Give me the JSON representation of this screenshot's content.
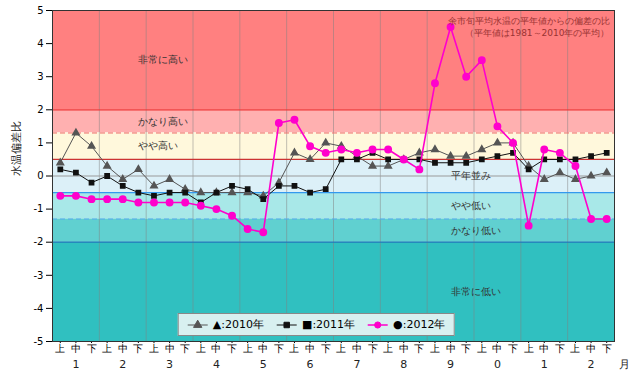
{
  "chart_data": {
    "type": "line",
    "ylabel": "水温偏差比",
    "xlabel": "月",
    "annotation": "余市旬平均水温の平年値からの偏差の比\n（平年値は1981～2010年の平均）",
    "categories": [
      "上",
      "中",
      "下",
      "上",
      "中",
      "下",
      "上",
      "中",
      "下",
      "上",
      "中",
      "下",
      "上",
      "中",
      "下",
      "上",
      "中",
      "下",
      "上",
      "中",
      "下",
      "上",
      "中",
      "下",
      "上",
      "中",
      "下",
      "上",
      "中",
      "下",
      "上",
      "中",
      "下",
      "上",
      "中",
      "下"
    ],
    "x_groups": [
      "1",
      "2",
      "3",
      "4",
      "5",
      "6",
      "7",
      "8",
      "9",
      "0",
      "1",
      "2"
    ],
    "ylim": [
      -5,
      5
    ],
    "yticks": [
      -5,
      -4,
      -3,
      -2,
      -1,
      0,
      1,
      2,
      3,
      4,
      5
    ],
    "grid": false,
    "legend": "lower center",
    "zones": [
      {
        "label": "非常に高い",
        "ymin": 2.0,
        "ymax": 5.0,
        "color": "#FF8080"
      },
      {
        "label": "かなり高い",
        "ymin": 1.3,
        "ymax": 2.0,
        "color": "#FFB0B0"
      },
      {
        "label": "やや高い",
        "ymin": 0.5,
        "ymax": 1.3,
        "color": "#FFF8DC"
      },
      {
        "label": "平年並み",
        "ymin": -0.5,
        "ymax": 0.5,
        "color": "#DCF0F8"
      },
      {
        "label": "やや低い",
        "ymin": -1.3,
        "ymax": -0.5,
        "color": "#A8E8E8"
      },
      {
        "label": "かなり低い",
        "ymin": -2.0,
        "ymax": -1.3,
        "color": "#60D0D0"
      },
      {
        "label": "非常に低い",
        "ymin": -5.0,
        "ymax": -2.0,
        "color": "#30C0C0"
      }
    ],
    "reference_lines": [
      {
        "value": 2.0,
        "color": "#EE3333",
        "line_style": "solid"
      },
      {
        "value": 1.3,
        "color": "#EE6666",
        "line_style": "dashed"
      },
      {
        "value": 0.5,
        "color": "#CC3333",
        "line_style": "solid"
      },
      {
        "value": 0.0,
        "color": "#999999",
        "line_style": "solid"
      },
      {
        "value": -0.5,
        "color": "#3399EE",
        "line_style": "solid"
      },
      {
        "value": -1.3,
        "color": "#55AAEE",
        "line_style": "dashed"
      },
      {
        "value": -2.0,
        "color": "#2277BB",
        "line_style": "solid"
      }
    ],
    "series": [
      {
        "name": "▲:2010年",
        "color": "#555555",
        "marker": "triangle",
        "line_style": "solid",
        "values": [
          0.4,
          1.3,
          0.9,
          0.3,
          -0.1,
          0.2,
          -0.3,
          -0.1,
          -0.4,
          -0.5,
          -0.5,
          -0.5,
          -0.5,
          -0.6,
          -0.2,
          0.7,
          0.5,
          1.0,
          0.9,
          0.6,
          0.3,
          0.3,
          0.5,
          0.7,
          0.8,
          0.6,
          0.6,
          0.8,
          1.0,
          1.0,
          0.3,
          -0.1,
          0.1,
          -0.1,
          -0.0,
          0.1
        ]
      },
      {
        "name": "■:2011年",
        "color": "#111111",
        "marker": "square",
        "line_style": "solid",
        "values": [
          0.2,
          0.1,
          -0.2,
          0.0,
          -0.3,
          -0.5,
          -0.6,
          -0.5,
          -0.5,
          -0.8,
          -0.5,
          -0.3,
          -0.4,
          -0.7,
          -0.3,
          -0.3,
          -0.5,
          -0.4,
          0.5,
          0.5,
          0.7,
          0.5,
          0.5,
          0.5,
          0.4,
          0.4,
          0.4,
          0.5,
          0.6,
          0.7,
          0.2,
          0.5,
          0.5,
          0.5,
          0.6,
          0.7
        ]
      },
      {
        "name": "●:2012年",
        "color": "#FF00CC",
        "marker": "circle",
        "line_style": "solid",
        "values": [
          -0.6,
          -0.6,
          -0.7,
          -0.7,
          -0.7,
          -0.8,
          -0.8,
          -0.8,
          -0.8,
          -0.9,
          -1.0,
          -1.2,
          -1.6,
          -1.7,
          1.6,
          1.7,
          0.9,
          0.7,
          0.8,
          0.7,
          0.8,
          0.8,
          0.5,
          0.2,
          2.8,
          4.5,
          3.0,
          3.5,
          1.5,
          1.0,
          -1.5,
          0.8,
          0.7,
          0.3,
          -1.3,
          -1.3
        ]
      }
    ]
  }
}
